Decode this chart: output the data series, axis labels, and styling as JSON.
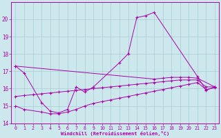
{
  "xlabel": "Windchill (Refroidissement éolien,°C)",
  "bg_color": "#cce8ec",
  "grid_color": "#aaccd4",
  "line_color": "#aa00aa",
  "xlim": [
    -0.5,
    23.5
  ],
  "ylim": [
    14,
    21
  ],
  "yticks": [
    14,
    15,
    16,
    17,
    18,
    19,
    20
  ],
  "xticks": [
    0,
    1,
    2,
    3,
    4,
    5,
    6,
    7,
    8,
    9,
    10,
    11,
    12,
    13,
    14,
    15,
    16,
    17,
    18,
    19,
    20,
    21,
    22,
    23
  ],
  "line1_x": [
    0,
    1,
    3,
    4,
    5,
    6,
    7,
    8,
    9,
    12,
    13,
    14,
    15,
    16,
    21,
    22,
    23
  ],
  "line1_y": [
    17.3,
    16.9,
    15.2,
    14.7,
    14.6,
    14.8,
    16.1,
    15.8,
    16.1,
    17.5,
    18.0,
    20.1,
    20.2,
    20.4,
    16.7,
    15.9,
    16.1
  ],
  "line2_x": [
    0,
    16,
    17,
    18,
    19,
    20,
    21,
    23
  ],
  "line2_y": [
    17.3,
    16.55,
    16.6,
    16.65,
    16.65,
    16.65,
    16.6,
    16.1
  ],
  "line3_x": [
    0,
    1,
    2,
    3,
    4,
    5,
    6,
    7,
    8,
    9,
    10,
    11,
    12,
    13,
    14,
    15,
    16,
    17,
    18,
    19,
    20,
    21,
    22,
    23
  ],
  "line3_y": [
    15.55,
    15.6,
    15.65,
    15.7,
    15.75,
    15.8,
    15.85,
    15.9,
    15.95,
    16.0,
    16.05,
    16.1,
    16.15,
    16.2,
    16.25,
    16.3,
    16.35,
    16.4,
    16.45,
    16.5,
    16.5,
    16.5,
    16.1,
    16.1
  ],
  "line4_x": [
    0,
    1,
    3,
    4,
    5,
    6,
    7,
    8,
    9,
    10,
    11,
    12,
    13,
    14,
    15,
    16,
    17,
    18,
    19,
    20,
    21,
    22,
    23
  ],
  "line4_y": [
    15.0,
    14.8,
    14.65,
    14.55,
    14.55,
    14.65,
    14.8,
    15.0,
    15.15,
    15.25,
    15.35,
    15.45,
    15.55,
    15.65,
    15.75,
    15.85,
    15.95,
    16.05,
    16.15,
    16.25,
    16.35,
    15.95,
    16.05
  ]
}
